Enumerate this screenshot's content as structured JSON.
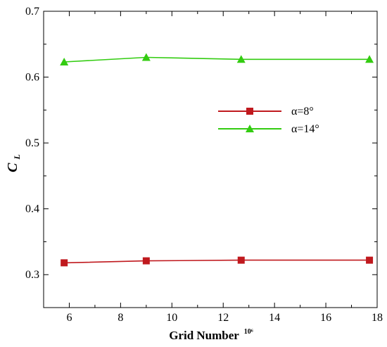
{
  "chart_data": {
    "type": "line",
    "xlabel": "Grid Number",
    "xlabel_superscript": "10⁶",
    "ylabel": "C",
    "ylabel_subscript": "L",
    "xlim": [
      5,
      18
    ],
    "ylim": [
      0.25,
      0.7
    ],
    "xticks": [
      6,
      8,
      10,
      12,
      14,
      16,
      18
    ],
    "yticks": [
      0.3,
      0.4,
      0.5,
      0.6,
      0.7
    ],
    "grid": false,
    "legend_position": "center-right",
    "series": [
      {
        "name": "α=8°",
        "color": "#c0191e",
        "marker": "square",
        "x": [
          5.8,
          9.0,
          12.7,
          17.7
        ],
        "y": [
          0.318,
          0.321,
          0.322,
          0.322
        ]
      },
      {
        "name": "α=14°",
        "color": "#33cc11",
        "marker": "triangle",
        "x": [
          5.8,
          9.0,
          12.7,
          17.7
        ],
        "y": [
          0.623,
          0.63,
          0.627,
          0.627
        ]
      }
    ]
  }
}
